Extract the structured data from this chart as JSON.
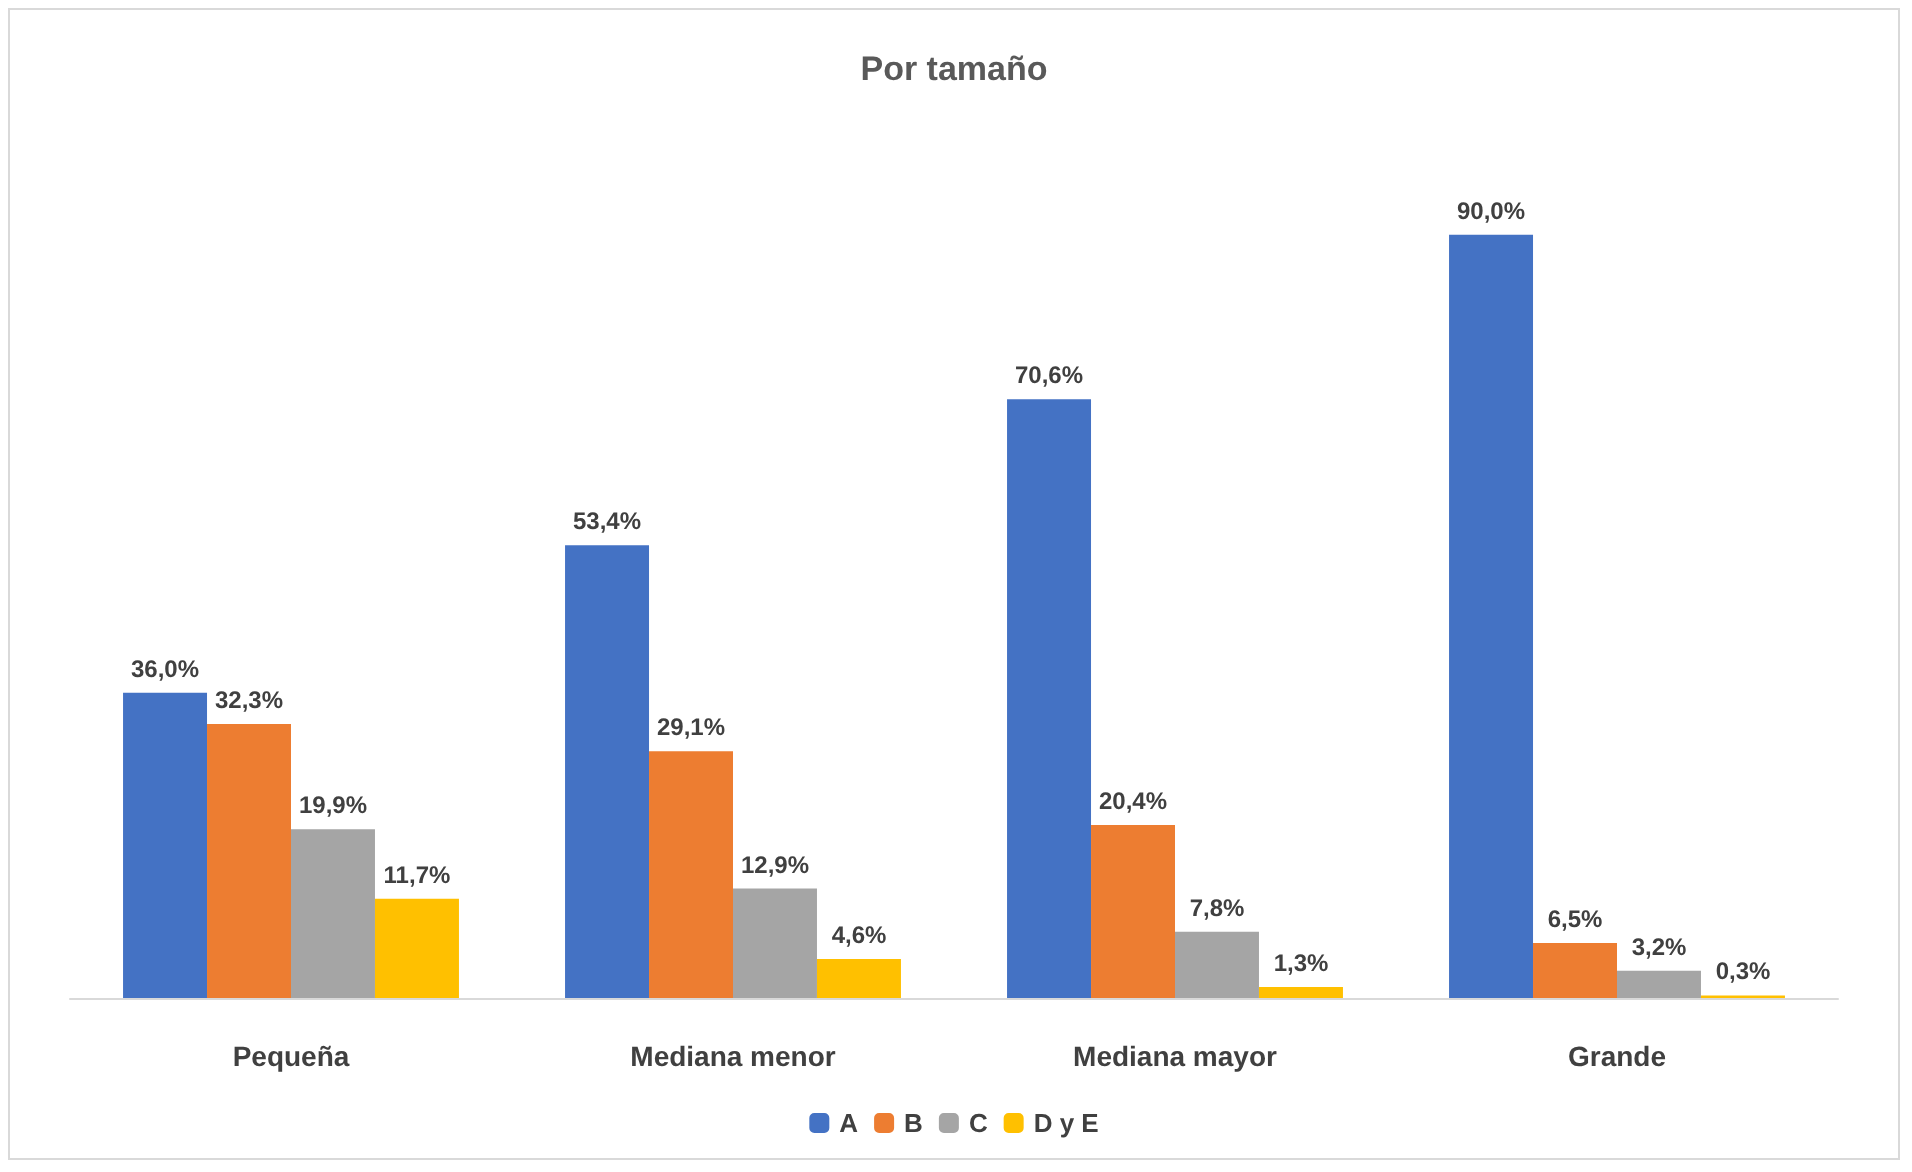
{
  "chart_data": {
    "type": "bar",
    "title": "Por tamaño",
    "categories": [
      "Pequeña",
      "Mediana menor",
      "Mediana mayor",
      "Grande"
    ],
    "series": [
      {
        "name": "A",
        "color": "#4472c4",
        "values": [
          36.0,
          53.4,
          70.6,
          90.0
        ],
        "value_labels": [
          "36,0%",
          "53,4%",
          "70,6%",
          "90,0%"
        ]
      },
      {
        "name": "B",
        "color": "#ed7d31",
        "values": [
          32.3,
          29.1,
          20.4,
          6.5
        ],
        "value_labels": [
          "32,3%",
          "29,1%",
          "20,4%",
          "6,5%"
        ]
      },
      {
        "name": "C",
        "color": "#a5a5a5",
        "values": [
          19.9,
          12.9,
          7.8,
          3.2
        ],
        "value_labels": [
          "19,9%",
          "12,9%",
          "7,8%",
          "3,2%"
        ]
      },
      {
        "name": "D y E",
        "color": "#ffc000",
        "values": [
          11.7,
          4.6,
          1.3,
          0.3
        ],
        "value_labels": [
          "11,7%",
          "4,6%",
          "1,3%",
          "0,3%"
        ]
      }
    ],
    "legend": "bottom",
    "tick_labels": "x"
  }
}
